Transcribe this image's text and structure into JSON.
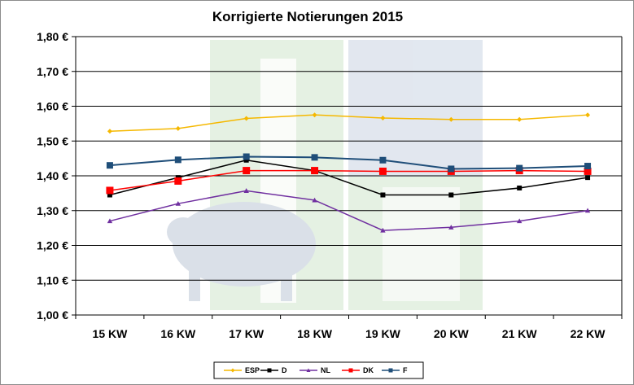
{
  "chart_data": {
    "type": "line",
    "title": "Korrigierte Notierungen 2015",
    "xlabel": "",
    "ylabel": "",
    "categories": [
      "15 KW",
      "16 KW",
      "17 KW",
      "18 KW",
      "19 KW",
      "20 KW",
      "21 KW",
      "22 KW"
    ],
    "ylim": [
      1.0,
      1.8
    ],
    "ytick_step": 0.1,
    "ytick_labels": [
      "1,00 €",
      "1,10 €",
      "1,20 €",
      "1,30 €",
      "1,40 €",
      "1,50 €",
      "1,60 €",
      "1,70 €",
      "1,80 €"
    ],
    "grid": true,
    "legend_position": "bottom",
    "series": [
      {
        "name": "ESP",
        "color": "#f5b800",
        "marker": "diamond",
        "values": [
          1.528,
          1.536,
          1.565,
          1.575,
          1.566,
          1.562,
          1.562,
          1.575
        ]
      },
      {
        "name": "D",
        "color": "#000000",
        "marker": "square",
        "values": [
          1.345,
          1.395,
          1.445,
          1.415,
          1.345,
          1.345,
          1.365,
          1.395
        ]
      },
      {
        "name": "NL",
        "color": "#7030a0",
        "marker": "triangle",
        "values": [
          1.27,
          1.32,
          1.357,
          1.33,
          1.243,
          1.252,
          1.27,
          1.3
        ]
      },
      {
        "name": "DK",
        "color": "#ff0000",
        "marker": "square",
        "values": [
          1.358,
          1.385,
          1.415,
          1.415,
          1.413,
          1.413,
          1.415,
          1.413
        ]
      },
      {
        "name": "F",
        "color": "#1f4e79",
        "marker": "square",
        "values": [
          1.43,
          1.446,
          1.455,
          1.453,
          1.445,
          1.42,
          1.422,
          1.428
        ]
      }
    ]
  }
}
